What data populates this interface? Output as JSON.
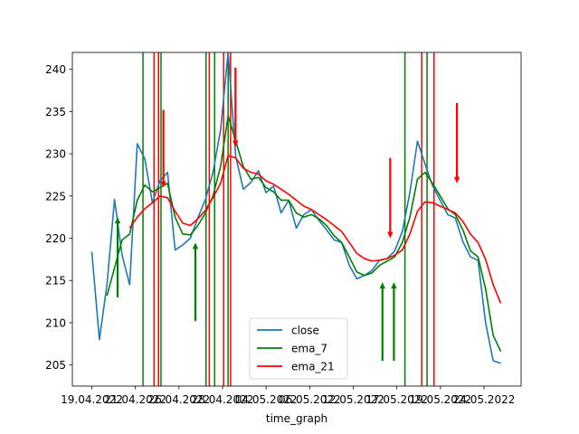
{
  "chart_data": {
    "type": "line",
    "title": "",
    "xlabel": "time_graph",
    "ylabel": "",
    "x_ticks": [
      "19.04.2022",
      "21.04.2022",
      "26.04.2022",
      "28.04.2022",
      "04.05.2022",
      "06.05.2022",
      "12.05.2022",
      "17.05.2022",
      "19.05.2022",
      "24.05.2022"
    ],
    "xlim": [
      0,
      100
    ],
    "ylim": [
      202.5,
      242
    ],
    "y_ticks": [
      205,
      210,
      215,
      220,
      225,
      230,
      235,
      240
    ],
    "grid": false,
    "legend": {
      "placement": "bottom-center",
      "entries": [
        "close",
        "ema_7",
        "ema_21"
      ]
    },
    "colors": {
      "close": "#1f77b4",
      "ema_7": "#008000",
      "ema_21": "#ff0000"
    },
    "x_positions": [
      0,
      1.85,
      3.7,
      5.55,
      7.4,
      9.25,
      11.1,
      12.95,
      14.8,
      16.65,
      18.5,
      20.35,
      22.2,
      24.05,
      25.9,
      27.75,
      29.6,
      31.45,
      33.3,
      35.15,
      37,
      38.85,
      40.7,
      42.55,
      44.4,
      46.25,
      48.1,
      49.95,
      51.8,
      53.65,
      55.5,
      57.35,
      59.2,
      61.05,
      62.9,
      64.75,
      66.6,
      68.45,
      70.3,
      72.15,
      74,
      75.85,
      77.7,
      79.55,
      81.4,
      83.25,
      85.1,
      86.95,
      88.8,
      90.65,
      92.5,
      94.35,
      96.2,
      98.05,
      99.9
    ],
    "series": [
      {
        "name": "close",
        "values": [
          218.4,
          208,
          214.5,
          224.6,
          218,
          214.5,
          231.2,
          229.4,
          224.2,
          226.8,
          227.8,
          218.6,
          219.2,
          220,
          222.4,
          224.6,
          227.8,
          232.8,
          242,
          229.7,
          225.8,
          226.6,
          228,
          225.4,
          226.2,
          223,
          224.5,
          221.2,
          222.8,
          223.4,
          222.1,
          221,
          219.8,
          219.5,
          216.8,
          215.2,
          215.6,
          216.2,
          217.4,
          217.6,
          218.5,
          220.8,
          225.4,
          231.5,
          228.8,
          226.2,
          224.5,
          222.8,
          222.4,
          219.6,
          217.8,
          217.4,
          210,
          205.5,
          205.2
        ]
      },
      {
        "name": "ema_7",
        "values": [
          null,
          null,
          213.2,
          216.5,
          219.8,
          220.5,
          224.5,
          226.3,
          225.5,
          226,
          226.5,
          222.5,
          220.5,
          220.4,
          221.5,
          223,
          225,
          228.5,
          234.5,
          231.5,
          228.5,
          227,
          227.2,
          226,
          225.5,
          224.5,
          224.5,
          223,
          222.5,
          222.8,
          222.3,
          221.5,
          220.3,
          219.5,
          217.8,
          216,
          215.6,
          215.9,
          216.8,
          217.3,
          217.8,
          219.5,
          222.5,
          227,
          227.8,
          226.5,
          225,
          223.5,
          222.8,
          221,
          218.5,
          217.8,
          214,
          208.5,
          206.6
        ]
      },
      {
        "name": "ema_21",
        "values": [
          null,
          null,
          null,
          null,
          null,
          221.2,
          222.5,
          223.5,
          224.2,
          225,
          224.8,
          223.2,
          221.8,
          221.5,
          222.3,
          223.3,
          224.8,
          226.5,
          229.8,
          229.5,
          228.3,
          227.8,
          227.6,
          226.8,
          226.4,
          225.8,
          225.2,
          224.5,
          223.8,
          223.4,
          222.8,
          222.2,
          221.5,
          220.8,
          219.5,
          218.2,
          217.6,
          217.3,
          217.4,
          217.6,
          218,
          218.6,
          220.5,
          223.2,
          224.3,
          224.2,
          223.8,
          223.4,
          223,
          222,
          220.5,
          219.5,
          217.5,
          214.5,
          212.3
        ]
      }
    ],
    "vertical_lines": [
      {
        "x": 12.5,
        "color": "green"
      },
      {
        "x": 15.2,
        "color": "red"
      },
      {
        "x": 16.3,
        "color": "red"
      },
      {
        "x": 16.9,
        "color": "green"
      },
      {
        "x": 27.9,
        "color": "green"
      },
      {
        "x": 28.7,
        "color": "red"
      },
      {
        "x": 30.0,
        "color": "green"
      },
      {
        "x": 32.2,
        "color": "red"
      },
      {
        "x": 33.3,
        "color": "green"
      },
      {
        "x": 33.9,
        "color": "red"
      },
      {
        "x": 76.5,
        "color": "green"
      },
      {
        "x": 80.6,
        "color": "red"
      },
      {
        "x": 81.9,
        "color": "green"
      },
      {
        "x": 83.6,
        "color": "red"
      }
    ],
    "arrows": [
      {
        "x": 6.3,
        "y_from": 213,
        "y_to": 222.5,
        "direction": "up",
        "color": "green"
      },
      {
        "x": 17.5,
        "y_from": 235.2,
        "y_to": 226,
        "direction": "down",
        "color": "red"
      },
      {
        "x": 25.3,
        "y_from": 210.2,
        "y_to": 219.5,
        "direction": "up",
        "color": "green"
      },
      {
        "x": 35.1,
        "y_from": 240.2,
        "y_to": 230.8,
        "direction": "down",
        "color": "red"
      },
      {
        "x": 71.0,
        "y_from": 205.5,
        "y_to": 214.8,
        "direction": "up",
        "color": "green"
      },
      {
        "x": 72.9,
        "y_from": 229.5,
        "y_to": 220,
        "direction": "down",
        "color": "red"
      },
      {
        "x": 73.8,
        "y_from": 205.5,
        "y_to": 214.8,
        "direction": "up",
        "color": "green"
      },
      {
        "x": 89.2,
        "y_from": 236,
        "y_to": 226.5,
        "direction": "down",
        "color": "red"
      }
    ]
  }
}
